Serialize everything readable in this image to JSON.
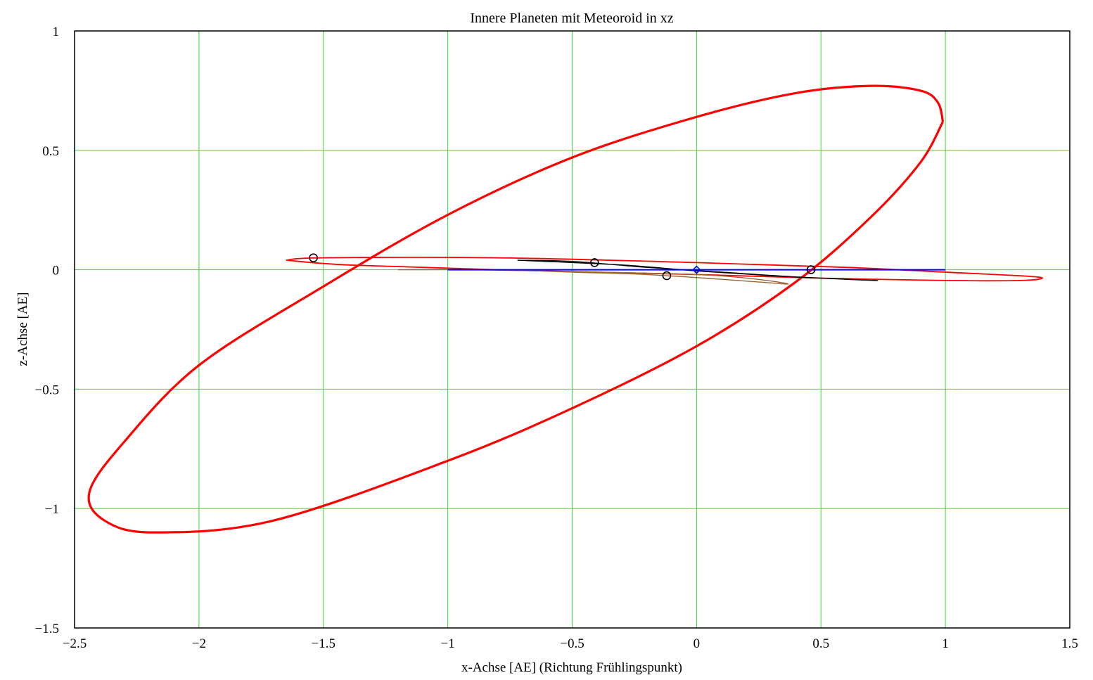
{
  "chart_data": {
    "type": "line",
    "title": "Innere Planeten mit Meteoroid in xz",
    "xlabel": "x-Achse [AE] (Richtung Frühlingspunkt)",
    "ylabel": "z-Achse [AE]",
    "xlim": [
      -2.5,
      1.5
    ],
    "ylim": [
      -1.5,
      1
    ],
    "grid": true,
    "grid_color": "#33dd33",
    "x_ticks": [
      -2.5,
      -2,
      -1.5,
      -1,
      -0.5,
      0,
      0.5,
      1,
      1.5
    ],
    "x_tick_labels": [
      "−2.5",
      "−2",
      "−1.5",
      "−1",
      "−0.5",
      "0",
      "0.5",
      "1",
      "1.5"
    ],
    "y_ticks": [
      1,
      0.5,
      0,
      -0.5,
      -1,
      -1.5
    ],
    "y_tick_labels": [
      "1",
      "0.5",
      "0",
      "−0.5",
      "−1",
      "−1.5"
    ],
    "series": [
      {
        "color": "#ff0000",
        "width": 3.2,
        "points": [
          [
            0.99,
            0.62
          ],
          [
            0.97,
            0.7
          ],
          [
            0.9,
            0.75
          ],
          [
            0.7,
            0.77
          ],
          [
            0.4,
            0.74
          ],
          [
            0.0,
            0.64
          ],
          [
            -0.5,
            0.47
          ],
          [
            -1.0,
            0.23
          ],
          [
            -1.5,
            -0.07
          ],
          [
            -2.0,
            -0.4
          ],
          [
            -2.3,
            -0.72
          ],
          [
            -2.44,
            -0.93
          ],
          [
            -2.38,
            -1.05
          ],
          [
            -2.18,
            -1.1
          ],
          [
            -1.7,
            -1.05
          ],
          [
            -1.0,
            -0.8
          ],
          [
            -0.5,
            -0.58
          ],
          [
            0.0,
            -0.32
          ],
          [
            0.4,
            -0.05
          ],
          [
            0.7,
            0.22
          ],
          [
            0.9,
            0.45
          ],
          [
            0.99,
            0.62
          ]
        ]
      },
      {
        "color": "#ff0000",
        "width": 1.8,
        "points": [
          [
            -1.65,
            0.04
          ],
          [
            -1.5,
            0.05
          ],
          [
            -0.8,
            0.05
          ],
          [
            0.0,
            0.03
          ],
          [
            0.6,
            0.01
          ],
          [
            1.0,
            -0.01
          ],
          [
            1.3,
            -0.025
          ],
          [
            1.39,
            -0.035
          ],
          [
            1.3,
            -0.045
          ],
          [
            1.0,
            -0.045
          ],
          [
            0.5,
            -0.035
          ],
          [
            0.0,
            -0.02
          ],
          [
            -0.8,
            0.0
          ],
          [
            -1.4,
            0.02
          ],
          [
            -1.65,
            0.04
          ]
        ]
      },
      {
        "color": "#996633",
        "width": 1.4,
        "points": [
          [
            -1.2,
            0.0
          ],
          [
            -0.9,
            0.0
          ],
          [
            -0.4,
            -0.01
          ],
          [
            0.0,
            -0.02
          ],
          [
            0.2,
            -0.035
          ],
          [
            0.35,
            -0.055
          ],
          [
            0.36,
            -0.06
          ],
          [
            0.3,
            -0.055
          ],
          [
            0.1,
            -0.04
          ],
          [
            -0.2,
            -0.02
          ],
          [
            -0.5,
            -0.01
          ],
          [
            -0.8,
            0.0
          ],
          [
            -1.2,
            0.0
          ]
        ]
      },
      {
        "color": "#000000",
        "width": 1.4,
        "points": [
          [
            -0.72,
            0.04
          ],
          [
            -0.5,
            0.035
          ],
          [
            -0.2,
            0.01
          ],
          [
            0.1,
            -0.01
          ],
          [
            0.4,
            -0.03
          ],
          [
            0.72,
            -0.045
          ],
          [
            0.6,
            -0.04
          ],
          [
            0.3,
            -0.025
          ],
          [
            0.0,
            -0.005
          ],
          [
            -0.3,
            0.02
          ],
          [
            -0.72,
            0.04
          ]
        ]
      },
      {
        "color": "#0000ff",
        "width": 2.0,
        "points": [
          [
            -1.0,
            0.0
          ],
          [
            1.0,
            0.0
          ]
        ]
      }
    ],
    "markers": [
      {
        "x": -1.54,
        "y": 0.05,
        "color": "#000000",
        "shape": "circle"
      },
      {
        "x": -0.41,
        "y": 0.03,
        "color": "#000000",
        "shape": "circle"
      },
      {
        "x": -0.12,
        "y": -0.025,
        "color": "#000000",
        "shape": "circle"
      },
      {
        "x": 0.46,
        "y": 0.0,
        "color": "#000000",
        "shape": "circle"
      },
      {
        "x": 0.0,
        "y": 0.0,
        "color": "#0000ff",
        "shape": "diamond"
      }
    ]
  }
}
